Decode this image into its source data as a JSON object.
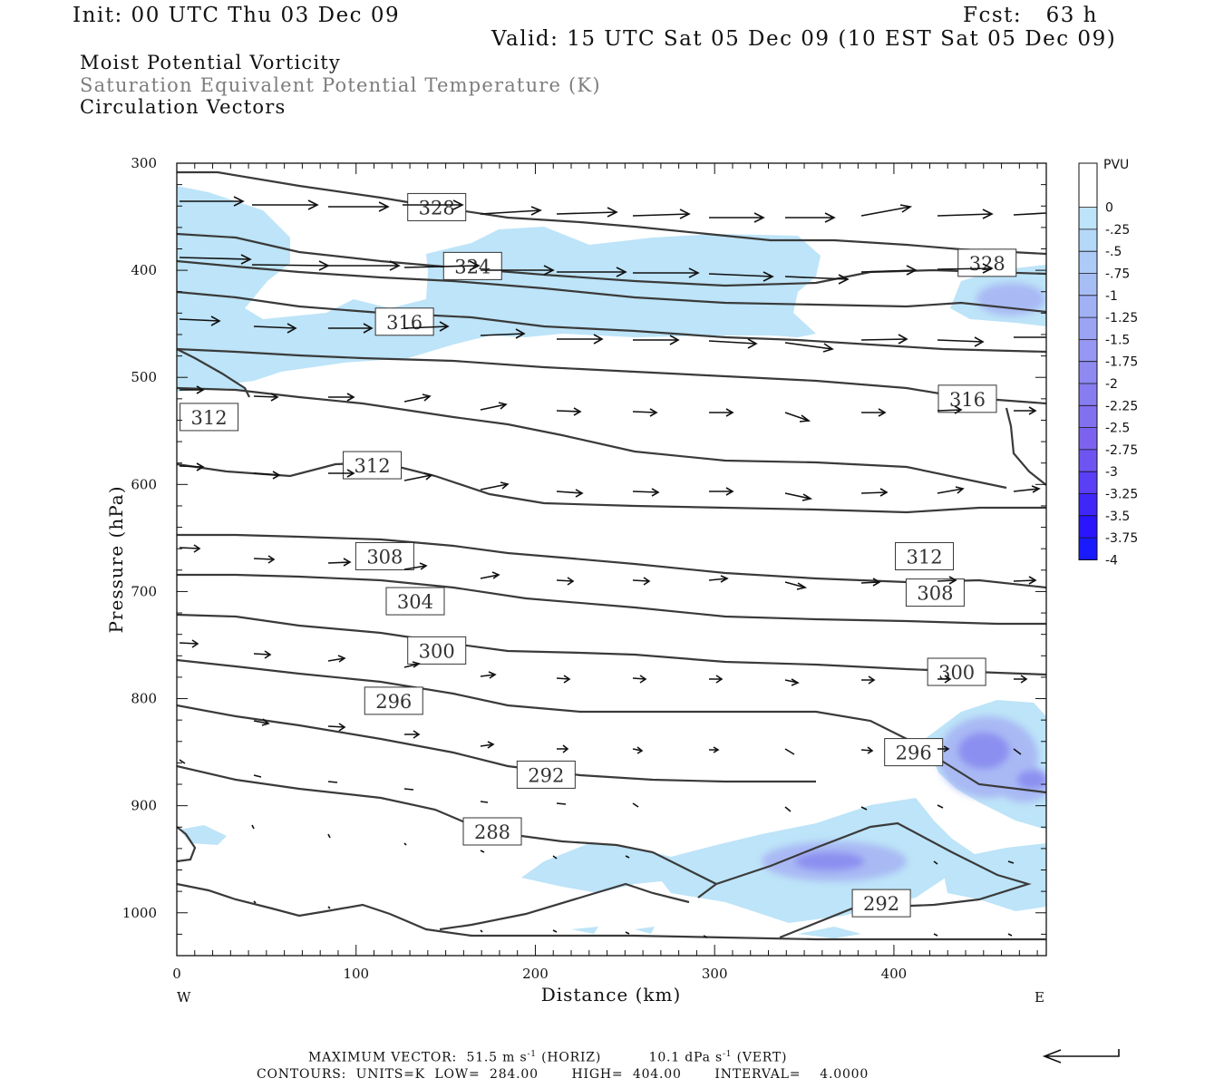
{
  "header": {
    "init": "Init: 00 UTC Thu 03 Dec 09",
    "fcst": "Fcst:   63 h",
    "valid": "Valid: 15 UTC Sat 05 Dec 09 (10 EST Sat 05 Dec 09)",
    "field1": "Moist Potential Vorticity",
    "field2": "Saturation Equivalent Potential Temperature (K)",
    "field3": "Circulation Vectors"
  },
  "footer": {
    "max_vector_label": "MAXIMUM VECTOR:",
    "max_vector_horiz": "51.5 m s",
    "horiz_unit": "(HORIZ)",
    "max_vector_vert": "10.1 dPa s",
    "vert_unit": "(VERT)",
    "exponent": "-1",
    "contours": "CONTOURS:  UNITS=K  LOW=  284.00       HIGH=  404.00       INTERVAL=    4.0000"
  },
  "colors": {
    "contour": "#3a3a3a",
    "pv_light": "#bde4f8",
    "pv_mid": "#a7b7f3",
    "pv_dark": "#7f86ee",
    "pv_darkest": "#1a1aff"
  },
  "chart_data": {
    "type": "heatmap",
    "xlabel": "Distance (km)",
    "ylabel": "Pressure (hPa)",
    "xlim": [
      0,
      485
    ],
    "ylim": [
      1040,
      300
    ],
    "x_ticks": [
      0,
      100,
      200,
      300,
      400
    ],
    "y_ticks": [
      300,
      400,
      500,
      600,
      700,
      800,
      900,
      1000
    ],
    "x_end_labels": {
      "left": "W",
      "right": "E"
    },
    "colorbar": {
      "title": "PVU",
      "levels": [
        "0",
        "-.25",
        "-.5",
        "-.75",
        "-1",
        "-1.25",
        "-1.5",
        "-1.75",
        "-2",
        "-2.25",
        "-2.5",
        "-2.75",
        "-3",
        "-3.25",
        "-3.5",
        "-3.75",
        "-4"
      ],
      "colors": [
        "#ffffff",
        "#ffffff",
        "#bde4f8",
        "#b4d8f7",
        "#adcbf6",
        "#a7bef5",
        "#a1b1f4",
        "#9ba4f3",
        "#9597f2",
        "#8f8af1",
        "#887df0",
        "#8270ef",
        "#7c63ef",
        "#6e55f2",
        "#5a3ff6",
        "#3f26f9",
        "#2a15fc",
        "#1a1aff"
      ]
    },
    "contour_labels": [
      {
        "value": "328",
        "x": 145,
        "p": 341
      },
      {
        "value": "324",
        "x": 165,
        "p": 396
      },
      {
        "value": "316",
        "x": 127,
        "p": 448
      },
      {
        "value": "312",
        "x": 18,
        "p": 537
      },
      {
        "value": "312",
        "x": 109,
        "p": 582
      },
      {
        "value": "308",
        "x": 116,
        "p": 667
      },
      {
        "value": "304",
        "x": 133,
        "p": 709
      },
      {
        "value": "300",
        "x": 145,
        "p": 755
      },
      {
        "value": "296",
        "x": 121,
        "p": 802
      },
      {
        "value": "292",
        "x": 206,
        "p": 871
      },
      {
        "value": "288",
        "x": 176,
        "p": 924
      },
      {
        "value": "328",
        "x": 452,
        "p": 393
      },
      {
        "value": "316",
        "x": 441,
        "p": 520
      },
      {
        "value": "312",
        "x": 417,
        "p": 667
      },
      {
        "value": "308",
        "x": 423,
        "p": 701
      },
      {
        "value": "300",
        "x": 435,
        "p": 775
      },
      {
        "value": "296",
        "x": 411,
        "p": 850
      },
      {
        "value": "292",
        "x": 393,
        "p": 991
      }
    ]
  }
}
